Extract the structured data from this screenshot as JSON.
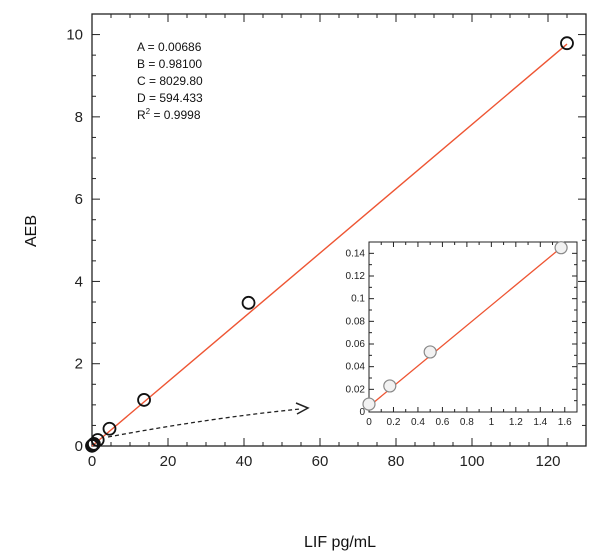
{
  "chart_data": {
    "main": {
      "type": "scatter",
      "xlabel": "LIF pg/mL",
      "ylabel": "AEB",
      "xlim": [
        0,
        130
      ],
      "ylim": [
        0,
        10.5
      ],
      "x_ticks": [
        0,
        20,
        40,
        60,
        80,
        100,
        120
      ],
      "y_ticks": [
        0,
        2,
        4,
        6,
        8,
        10
      ],
      "x_tick_labels": [
        "0",
        "20",
        "40",
        "60",
        "80",
        "100",
        "120"
      ],
      "y_tick_labels": [
        "0",
        "2",
        "4",
        "6",
        "8",
        "10"
      ],
      "grid": false,
      "points": [
        {
          "x": 0.0,
          "y": 0.005
        },
        {
          "x": 0.2,
          "y": 0.02
        },
        {
          "x": 0.5,
          "y": 0.05
        },
        {
          "x": 1.5,
          "y": 0.145
        },
        {
          "x": 4.6,
          "y": 0.42
        },
        {
          "x": 13.7,
          "y": 1.12
        },
        {
          "x": 41.2,
          "y": 3.48
        },
        {
          "x": 125.0,
          "y": 9.79
        }
      ],
      "fit_line": {
        "x_start": 0,
        "y_start": 0.0,
        "x_end": 125,
        "y_end": 9.77,
        "color": "#ee5533"
      },
      "parameters": [
        {
          "label": "A = 0.00686"
        },
        {
          "label": "B = 0.98100"
        },
        {
          "label": "C = 8029.80"
        },
        {
          "label": "D = 594.433"
        },
        {
          "label_prefix": "R",
          "label_sup": "2",
          "label_suffix": " = 0.9998"
        }
      ]
    },
    "inset": {
      "type": "scatter",
      "xlim": [
        0,
        1.7
      ],
      "ylim": [
        0,
        0.15
      ],
      "x_ticks": [
        0,
        0.2,
        0.4,
        0.6,
        0.8,
        1,
        1.2,
        1.4,
        1.6
      ],
      "y_ticks": [
        0,
        0.02,
        0.04,
        0.06,
        0.08,
        0.1,
        0.12,
        0.14
      ],
      "x_tick_labels": [
        "0",
        "0.2",
        "0.4",
        "0.6",
        "0.8",
        "1",
        "1.2",
        "1.4",
        "1.6"
      ],
      "y_tick_labels": [
        "0",
        "0.02",
        "0.04",
        "0.06",
        "0.08",
        "0.1",
        "0.12",
        "0.14"
      ],
      "points": [
        {
          "x": 0.0,
          "y": 0.007
        },
        {
          "x": 0.17,
          "y": 0.023
        },
        {
          "x": 0.5,
          "y": 0.053
        },
        {
          "x": 1.57,
          "y": 0.145
        }
      ],
      "fit_line": {
        "x_start": 0,
        "y_start": 0.005,
        "x_end": 1.57,
        "y_end": 0.145,
        "color": "#ee5533"
      }
    }
  }
}
